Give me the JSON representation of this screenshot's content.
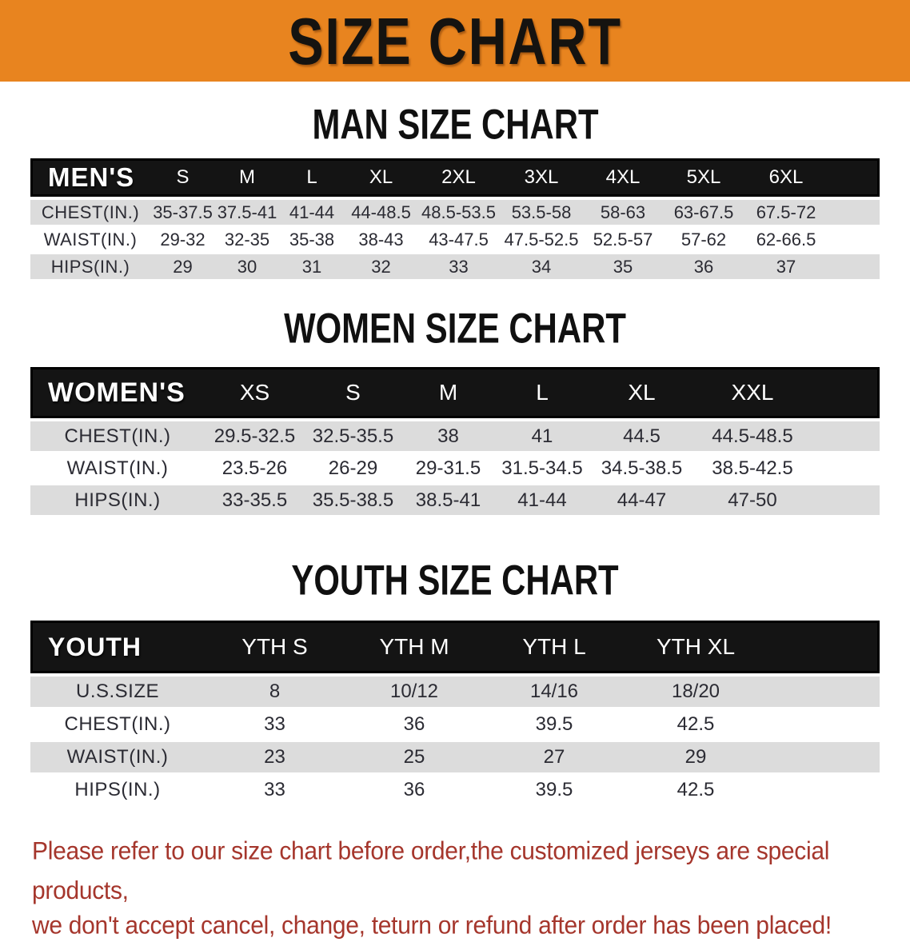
{
  "banner": {
    "title": "SIZE CHART",
    "bg_color": "#e8841f",
    "text_color": "#151310"
  },
  "sections": [
    {
      "title": "MAN SIZE CHART",
      "header_label": "MEN'S",
      "columns": [
        "S",
        "M",
        "L",
        "XL",
        "2XL",
        "3XL",
        "4XL",
        "5XL",
        "6XL"
      ],
      "rows": [
        {
          "label": "CHEST(IN.)",
          "values": [
            "35-37.5",
            "37.5-41",
            "41-44",
            "44-48.5",
            "48.5-53.5",
            "53.5-58",
            "58-63",
            "63-67.5",
            "67.5-72"
          ]
        },
        {
          "label": "WAIST(IN.)",
          "values": [
            "29-32",
            "32-35",
            "35-38",
            "38-43",
            "43-47.5",
            "47.5-52.5",
            "52.5-57",
            "57-62",
            "62-66.5"
          ]
        },
        {
          "label": "HIPS(IN.)",
          "values": [
            "29",
            "30",
            "31",
            "32",
            "33",
            "34",
            "35",
            "36",
            "37"
          ]
        }
      ]
    },
    {
      "title": "WOMEN SIZE CHART",
      "header_label": "WOMEN'S",
      "columns": [
        "XS",
        "S",
        "M",
        "L",
        "XL",
        "XXL"
      ],
      "rows": [
        {
          "label": "CHEST(IN.)",
          "values": [
            "29.5-32.5",
            "32.5-35.5",
            "38",
            "41",
            "44.5",
            "44.5-48.5"
          ]
        },
        {
          "label": "WAIST(IN.)",
          "values": [
            "23.5-26",
            "26-29",
            "29-31.5",
            "31.5-34.5",
            "34.5-38.5",
            "38.5-42.5"
          ]
        },
        {
          "label": "HIPS(IN.)",
          "values": [
            "33-35.5",
            "35.5-38.5",
            "38.5-41",
            "41-44",
            "44-47",
            "47-50"
          ]
        }
      ]
    },
    {
      "title": "YOUTH SIZE CHART",
      "header_label": "YOUTH",
      "columns": [
        "YTH S",
        "YTH M",
        "YTH L",
        "YTH XL"
      ],
      "rows": [
        {
          "label": "U.S.SIZE",
          "values": [
            "8",
            "10/12",
            "14/16",
            "18/20"
          ]
        },
        {
          "label": "CHEST(IN.)",
          "values": [
            "33",
            "36",
            "39.5",
            "42.5"
          ]
        },
        {
          "label": "WAIST(IN.)",
          "values": [
            "23",
            "25",
            "27",
            "29"
          ]
        },
        {
          "label": "HIPS(IN.)",
          "values": [
            "33",
            "36",
            "39.5",
            "42.5"
          ]
        }
      ]
    }
  ],
  "footnote": {
    "line1": "Please refer to our size chart before order,the customized jerseys are special products,",
    "line2": "we don't accept cancel, change, teturn or refund after order has been placed!",
    "color": "#a5362c"
  },
  "colors": {
    "banner_orange": "#e8841f",
    "header_black": "#141414",
    "row_gray": "#dcdcdc",
    "row_white": "#ffffff",
    "body_text": "#2b2b33"
  }
}
